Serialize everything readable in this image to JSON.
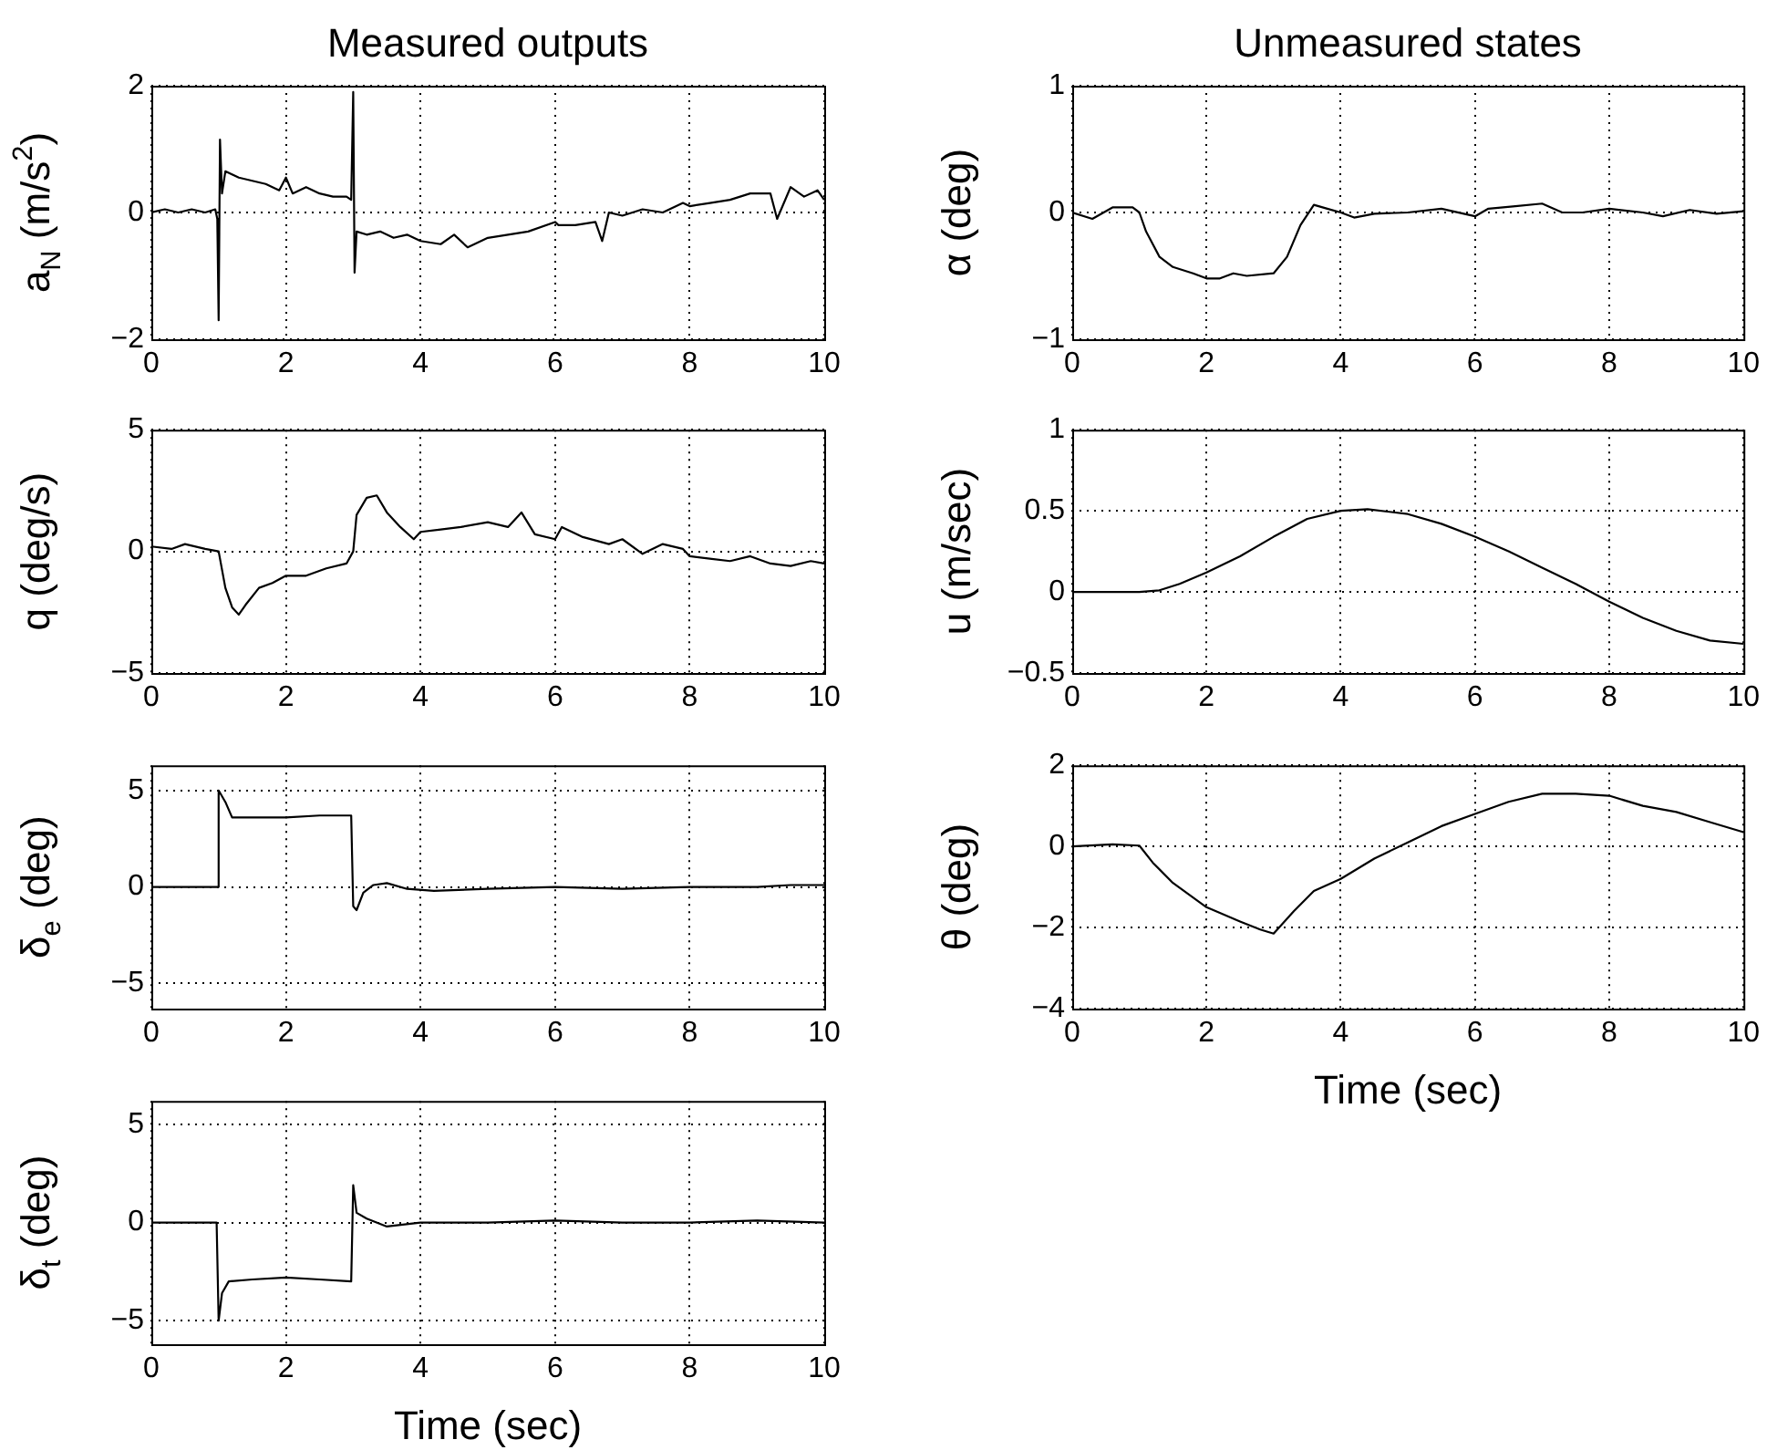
{
  "chart_data": [
    {
      "type": "line",
      "title": "Measured outputs",
      "ylabel": "a$_{N}$ (m/s$^{2}$)",
      "xlim": [
        0,
        10
      ],
      "xticks": [
        0,
        2,
        4,
        6,
        8,
        10
      ],
      "ylim": [
        -2,
        2
      ],
      "yticks": [
        -2,
        0,
        2
      ],
      "grid": true,
      "legend": false,
      "series": [
        {
          "color": "#000000",
          "x": [
            0,
            0.2,
            0.4,
            0.6,
            0.8,
            0.95,
            0.98,
            1.0,
            1.02,
            1.05,
            1.1,
            1.3,
            1.5,
            1.7,
            1.9,
            2.0,
            2.1,
            2.3,
            2.5,
            2.7,
            2.9,
            2.97,
            3.0,
            3.02,
            3.05,
            3.2,
            3.4,
            3.6,
            3.8,
            4.0,
            4.3,
            4.5,
            4.7,
            5.0,
            5.3,
            5.6,
            6.0,
            6.05,
            6.3,
            6.6,
            6.7,
            6.8,
            7.0,
            7.3,
            7.6,
            7.9,
            8.0,
            8.3,
            8.6,
            8.9,
            9.2,
            9.3,
            9.5,
            9.7,
            9.9,
            10
          ],
          "values": [
            0,
            0.05,
            0,
            0.05,
            0,
            0.05,
            -0.1,
            -1.7,
            1.15,
            0.3,
            0.65,
            0.55,
            0.5,
            0.45,
            0.35,
            0.55,
            0.3,
            0.4,
            0.3,
            0.25,
            0.25,
            0.2,
            1.9,
            -0.95,
            -0.3,
            -0.35,
            -0.3,
            -0.4,
            -0.35,
            -0.45,
            -0.5,
            -0.35,
            -0.55,
            -0.4,
            -0.35,
            -0.3,
            -0.15,
            -0.2,
            -0.2,
            -0.15,
            -0.45,
            0,
            -0.05,
            0.05,
            0,
            0.15,
            0.1,
            0.15,
            0.2,
            0.3,
            0.3,
            -0.1,
            0.4,
            0.25,
            0.35,
            0.2
          ]
        }
      ]
    },
    {
      "type": "line",
      "ylabel": "q (deg/s)",
      "xlim": [
        0,
        10
      ],
      "xticks": [
        0,
        2,
        4,
        6,
        8,
        10
      ],
      "ylim": [
        -5,
        5
      ],
      "yticks": [
        -5,
        0,
        5
      ],
      "grid": true,
      "legend": false,
      "series": [
        {
          "color": "#000000",
          "x": [
            0,
            0.3,
            0.5,
            0.8,
            1.0,
            1.1,
            1.2,
            1.3,
            1.4,
            1.6,
            1.8,
            2.0,
            2.3,
            2.6,
            2.9,
            3.0,
            3.05,
            3.2,
            3.35,
            3.5,
            3.7,
            3.9,
            4.0,
            4.3,
            4.6,
            5.0,
            5.3,
            5.5,
            5.7,
            6.0,
            6.1,
            6.4,
            6.8,
            7.0,
            7.3,
            7.6,
            7.9,
            8.0,
            8.3,
            8.6,
            8.9,
            9.2,
            9.5,
            9.8,
            10
          ],
          "values": [
            0.2,
            0.1,
            0.3,
            0.1,
            0,
            -1.5,
            -2.3,
            -2.6,
            -2.2,
            -1.5,
            -1.3,
            -1.0,
            -1.0,
            -0.7,
            -0.5,
            0,
            1.5,
            2.2,
            2.3,
            1.6,
            1.0,
            0.5,
            0.8,
            0.9,
            1.0,
            1.2,
            1.0,
            1.6,
            0.7,
            0.5,
            1.0,
            0.6,
            0.3,
            0.5,
            -0.1,
            0.3,
            0.1,
            -0.2,
            -0.3,
            -0.4,
            -0.2,
            -0.5,
            -0.6,
            -0.4,
            -0.5
          ]
        }
      ]
    },
    {
      "type": "line",
      "ylabel": "δ$_{e}$ (deg)",
      "xlim": [
        0,
        10
      ],
      "xticks": [
        0,
        2,
        4,
        6,
        8,
        10
      ],
      "ylim": [
        -6.3,
        6.3
      ],
      "yticks": [
        -5,
        0,
        5
      ],
      "grid": true,
      "legend": false,
      "series": [
        {
          "color": "#000000",
          "x": [
            0,
            0.5,
            0.98,
            1.0,
            1.1,
            1.2,
            1.5,
            2.0,
            2.5,
            2.97,
            3.0,
            3.05,
            3.15,
            3.3,
            3.5,
            3.8,
            4.2,
            5,
            6,
            7,
            8,
            9,
            9.5,
            10
          ],
          "values": [
            0,
            0,
            0,
            5.0,
            4.4,
            3.6,
            3.6,
            3.6,
            3.7,
            3.7,
            -1.0,
            -1.2,
            -0.3,
            0.1,
            0.2,
            -0.1,
            -0.2,
            -0.1,
            0,
            -0.1,
            0,
            0,
            0.1,
            0.1
          ]
        }
      ]
    },
    {
      "type": "line",
      "ylabel": "δ$_{t}$ (deg)",
      "xlabel": "Time (sec)",
      "xlim": [
        0,
        10
      ],
      "xticks": [
        0,
        2,
        4,
        6,
        8,
        10
      ],
      "ylim": [
        -6.2,
        6.2
      ],
      "yticks": [
        -5,
        0,
        5
      ],
      "grid": true,
      "legend": false,
      "series": [
        {
          "color": "#000000",
          "x": [
            0,
            0.97,
            1.0,
            1.05,
            1.15,
            1.5,
            2.0,
            2.5,
            2.97,
            3.0,
            3.05,
            3.2,
            3.5,
            4,
            5,
            6,
            7,
            8,
            9,
            10
          ],
          "values": [
            0,
            0,
            -5.0,
            -3.6,
            -3.0,
            -2.9,
            -2.8,
            -2.9,
            -3.0,
            1.9,
            0.5,
            0.2,
            -0.2,
            0,
            0,
            0.1,
            0,
            0,
            0.1,
            0
          ]
        }
      ]
    },
    {
      "type": "line",
      "title": "Unmeasured states",
      "ylabel": "α (deg)",
      "xlim": [
        0,
        10
      ],
      "xticks": [
        0,
        2,
        4,
        6,
        8,
        10
      ],
      "ylim": [
        -1,
        1
      ],
      "yticks": [
        -1,
        0,
        1
      ],
      "grid": true,
      "legend": false,
      "series": [
        {
          "color": "#000000",
          "x": [
            0,
            0.3,
            0.6,
            0.9,
            1.0,
            1.1,
            1.3,
            1.5,
            1.8,
            2.0,
            2.2,
            2.4,
            2.6,
            3.0,
            3.2,
            3.4,
            3.6,
            3.8,
            4.0,
            4.2,
            4.5,
            5,
            5.5,
            6.0,
            6.2,
            6.6,
            7.0,
            7.3,
            7.6,
            8,
            8.5,
            8.8,
            9.2,
            9.6,
            10
          ],
          "values": [
            0,
            -0.05,
            0.04,
            0.04,
            0,
            -0.15,
            -0.35,
            -0.43,
            -0.48,
            -0.52,
            -0.52,
            -0.48,
            -0.5,
            -0.48,
            -0.35,
            -0.1,
            0.06,
            0.03,
            0,
            -0.04,
            -0.01,
            0,
            0.03,
            -0.03,
            0.03,
            0.05,
            0.07,
            0,
            0,
            0.03,
            0,
            -0.03,
            0.02,
            -0.01,
            0.01
          ]
        }
      ]
    },
    {
      "type": "line",
      "ylabel": "u (m/sec)",
      "xlim": [
        0,
        10
      ],
      "xticks": [
        0,
        2,
        4,
        6,
        8,
        10
      ],
      "ylim": [
        -0.5,
        1
      ],
      "yticks": [
        -0.5,
        0,
        0.5,
        1
      ],
      "grid": true,
      "legend": false,
      "series": [
        {
          "color": "#000000",
          "x": [
            0,
            1.0,
            1.3,
            1.6,
            2,
            2.5,
            3,
            3.5,
            4,
            4.4,
            5,
            5.5,
            6,
            6.5,
            7,
            7.5,
            8,
            8.5,
            9,
            9.5,
            10
          ],
          "values": [
            0,
            0,
            0.01,
            0.05,
            0.12,
            0.22,
            0.34,
            0.45,
            0.5,
            0.51,
            0.48,
            0.42,
            0.34,
            0.25,
            0.15,
            0.05,
            -0.06,
            -0.16,
            -0.24,
            -0.3,
            -0.32
          ]
        }
      ]
    },
    {
      "type": "line",
      "ylabel": "θ (deg)",
      "xlabel": "Time (sec)",
      "xlim": [
        0,
        10
      ],
      "xticks": [
        0,
        2,
        4,
        6,
        8,
        10
      ],
      "ylim": [
        -4,
        2
      ],
      "yticks": [
        -4,
        -2,
        0,
        2
      ],
      "grid": true,
      "legend": false,
      "series": [
        {
          "color": "#000000",
          "x": [
            0,
            0.6,
            1.0,
            1.2,
            1.5,
            2,
            2.5,
            2.8,
            3.0,
            3.3,
            3.6,
            4,
            4.5,
            5,
            5.5,
            6,
            6.5,
            7,
            7.5,
            8,
            8.5,
            9,
            9.5,
            10
          ],
          "values": [
            0,
            0.05,
            0.02,
            -0.4,
            -0.9,
            -1.5,
            -1.85,
            -2.05,
            -2.15,
            -1.6,
            -1.1,
            -0.8,
            -0.3,
            0.1,
            0.5,
            0.8,
            1.1,
            1.3,
            1.3,
            1.25,
            1.0,
            0.85,
            0.6,
            0.35
          ]
        }
      ]
    }
  ]
}
